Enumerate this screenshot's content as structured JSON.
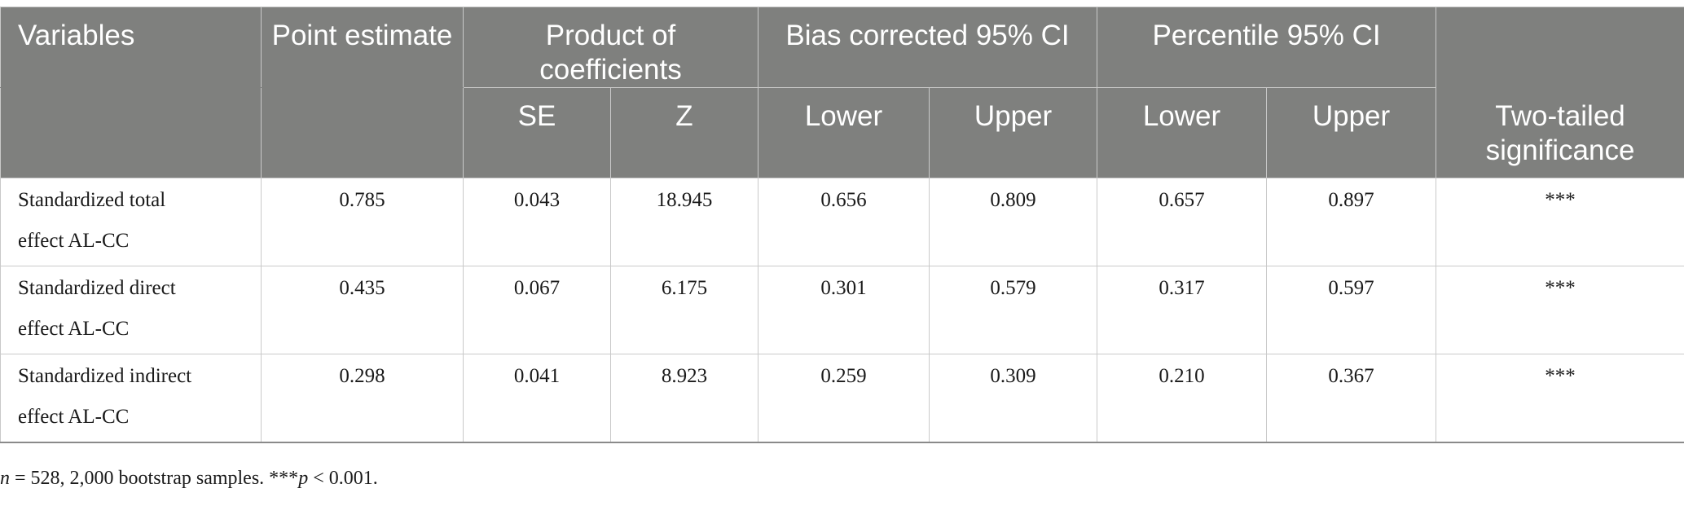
{
  "header": {
    "variables": "Variables",
    "point_estimate": "Point estimate",
    "product_of_coefficients": "Product of coefficients",
    "bias_corrected_ci": "Bias corrected 95% CI",
    "percentile_ci": "Percentile 95% CI",
    "se": "SE",
    "z": "Z",
    "bc_lower": "Lower",
    "bc_upper": "Upper",
    "pct_lower": "Lower",
    "pct_upper": "Upper",
    "two_tailed_significance": "Two-tailed significance"
  },
  "rows": [
    {
      "label_line1": "Standardized total",
      "label_line2": "effect AL-CC",
      "point_estimate": "0.785",
      "se": "0.043",
      "z": "18.945",
      "bc_lower": "0.656",
      "bc_upper": "0.809",
      "pct_lower": "0.657",
      "pct_upper": "0.897",
      "significance": "***"
    },
    {
      "label_line1": "Standardized direct",
      "label_line2": "effect AL-CC",
      "point_estimate": "0.435",
      "se": "0.067",
      "z": "6.175",
      "bc_lower": "0.301",
      "bc_upper": "0.579",
      "pct_lower": "0.317",
      "pct_upper": "0.597",
      "significance": "***"
    },
    {
      "label_line1": "Standardized indirect",
      "label_line2": "effect AL-CC",
      "point_estimate": "0.298",
      "se": "0.041",
      "z": "8.923",
      "bc_lower": "0.259",
      "bc_upper": "0.309",
      "pct_lower": "0.210",
      "pct_upper": "0.367",
      "significance": "***"
    }
  ],
  "footnote": {
    "n_symbol": "n",
    "n_text": " = 528, 2,000 bootstrap samples. ***",
    "p_symbol": "p",
    "p_text": " < 0.001."
  }
}
